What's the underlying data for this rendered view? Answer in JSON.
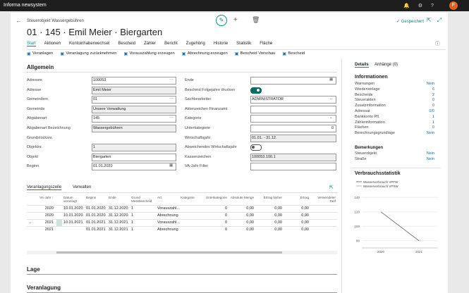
{
  "topbar": {
    "app": "Informa newsystem",
    "user_initial": "F"
  },
  "header": {
    "breadcrumb": "Steuerobjekt Wassergebühren",
    "title": "01 · 145 · Emil Meier · Biergarten",
    "status": "✓ Gespeichert"
  },
  "menu": [
    "Start",
    "Aktionen",
    "Kontoinhaberwechsel",
    "Bescheid",
    "Zähler",
    "Bericht",
    "Zugehörig",
    "Historie",
    "Statistik",
    "Fläche"
  ],
  "actions": [
    "Veranlagen",
    "Veranlagung zurücknehmen",
    "Vorauszahlung erzeugen",
    "Abrechnung erzeugen",
    "Bescheid Vorschau",
    "Bescheid"
  ],
  "general": {
    "title": "Allgemein",
    "left": [
      {
        "label": "Adressnr.",
        "value": "100053",
        "kind": "lookup"
      },
      {
        "label": "Adresse",
        "value": "Emil Meier",
        "readonly": true
      },
      {
        "label": "Gemeindenr.",
        "value": "01",
        "kind": "lookup"
      },
      {
        "label": "Gemeinde",
        "value": "Unsere Verwaltung",
        "readonly": true
      },
      {
        "label": "Abgabenart",
        "value": "145",
        "kind": "lookup"
      },
      {
        "label": "Abgabenart Bezeichnung",
        "value": "Wassergebühren",
        "readonly": true
      },
      {
        "label": "Grundstücksnr.",
        "kind": "none"
      },
      {
        "label": "Objektnr.",
        "value": "1",
        "readonly": true
      },
      {
        "label": "Objekt",
        "value": "Biergarten"
      },
      {
        "label": "Beginn",
        "value": "01.01.2020",
        "kind": "date"
      }
    ],
    "right": [
      {
        "label": "Ende",
        "kind": "date"
      },
      {
        "label": "Bescheid Folgejahre drucken",
        "kind": "toggle",
        "on": true
      },
      {
        "label": "Sachbearbeiter",
        "value": "ADMINISTRATOR",
        "kind": "select"
      },
      {
        "label": "Aktenzeichen Finanzamt"
      },
      {
        "label": "Kategorie",
        "kind": "select"
      },
      {
        "label": "Unterkategorie",
        "value": "0",
        "align": "right"
      },
      {
        "label": "Wirtschaftsjahr",
        "value": "01.01. - 31.12.",
        "readonly": true
      },
      {
        "label": "Abweichendes Wirtschaftsjahr",
        "kind": "toggle",
        "on": false
      },
      {
        "label": "Kassenzeichen",
        "value": "100053.100.1",
        "readonly": true
      },
      {
        "label": "VA-Jahr Filter"
      }
    ]
  },
  "lines": {
    "tabs": [
      "Veranlagungszeile",
      "Verwalten"
    ],
    "columns": [
      "VA-Jahr ↑",
      "Datum veranlagt",
      "Beginn",
      "Ende",
      "Grund Messbescheid",
      "Art",
      "Kategorie",
      "Unterkategorie",
      "Absolute Menge",
      "Ertrag bisher",
      "Ertrag",
      "Verwendeter Tarif"
    ],
    "rows": [
      [
        "2020",
        "10.01.2020",
        "01.01.2020",
        "31.12.2020",
        "1",
        "Vorauszahl...",
        null,
        "0",
        "0,00",
        "0,00",
        "0,00",
        null
      ],
      [
        "2020",
        "10.01.2020",
        "01.01.2020",
        "31.12.2020",
        "1",
        "Abrechnung",
        null,
        "0",
        "0,00",
        "0,00",
        "0,00",
        null
      ],
      [
        "2021",
        "10.01.2021",
        "01.01.2021",
        "31.12.2021",
        "1",
        "Vorauszahl...",
        null,
        "0",
        "0,00",
        "0,00",
        "0,00",
        null
      ],
      [
        "2021",
        null,
        "01.01.2021",
        "31.12.2021",
        "1",
        "Abrechnung",
        null,
        "0",
        "0,00",
        "0,00",
        "0,00",
        null
      ]
    ],
    "current_row": 2
  },
  "sections": [
    "Lage",
    "Veranlagung"
  ],
  "factbox": {
    "tabs": [
      "Details",
      "Anhänge (0)"
    ],
    "info_title": "Informationen",
    "info": [
      {
        "label": "Warnungen",
        "value": "Nein"
      },
      {
        "label": "Wiedervorlage",
        "value": "6"
      },
      {
        "label": "Bescheide",
        "value": "2"
      },
      {
        "label": "Steuerakten",
        "value": "0"
      },
      {
        "label": "Zusatzinformation",
        "value": "0"
      },
      {
        "label": "Adressat",
        "value": "0/0"
      },
      {
        "label": "Bankkonto Pfl.",
        "value": "1"
      },
      {
        "label": "Zählerinformation",
        "value": "1"
      },
      {
        "label": "Flächen",
        "value": "0"
      },
      {
        "label": "Berechnungsgrundlage",
        "value": "Nein"
      }
    ],
    "remarks_title": "Bemerkungen",
    "remarks": [
      {
        "label": "Steuerobjekt",
        "value": "Nein"
      },
      {
        "label": "Straße",
        "value": "Nein"
      }
    ],
    "chart": {
      "type": "line",
      "title": "Verbrauchsstatistik",
      "categories": [
        "2020",
        "2021"
      ],
      "series": [
        {
          "name": "Wasserverbrauch VPFW",
          "color": "#7a7a7a",
          "values": [
            120,
            80
          ]
        },
        {
          "name": "Wasserverbrauch VPSW",
          "color": "#b5b5b5"
        }
      ],
      "ylim": [
        70,
        150
      ],
      "yticks": [
        80,
        100,
        120,
        140
      ]
    }
  }
}
